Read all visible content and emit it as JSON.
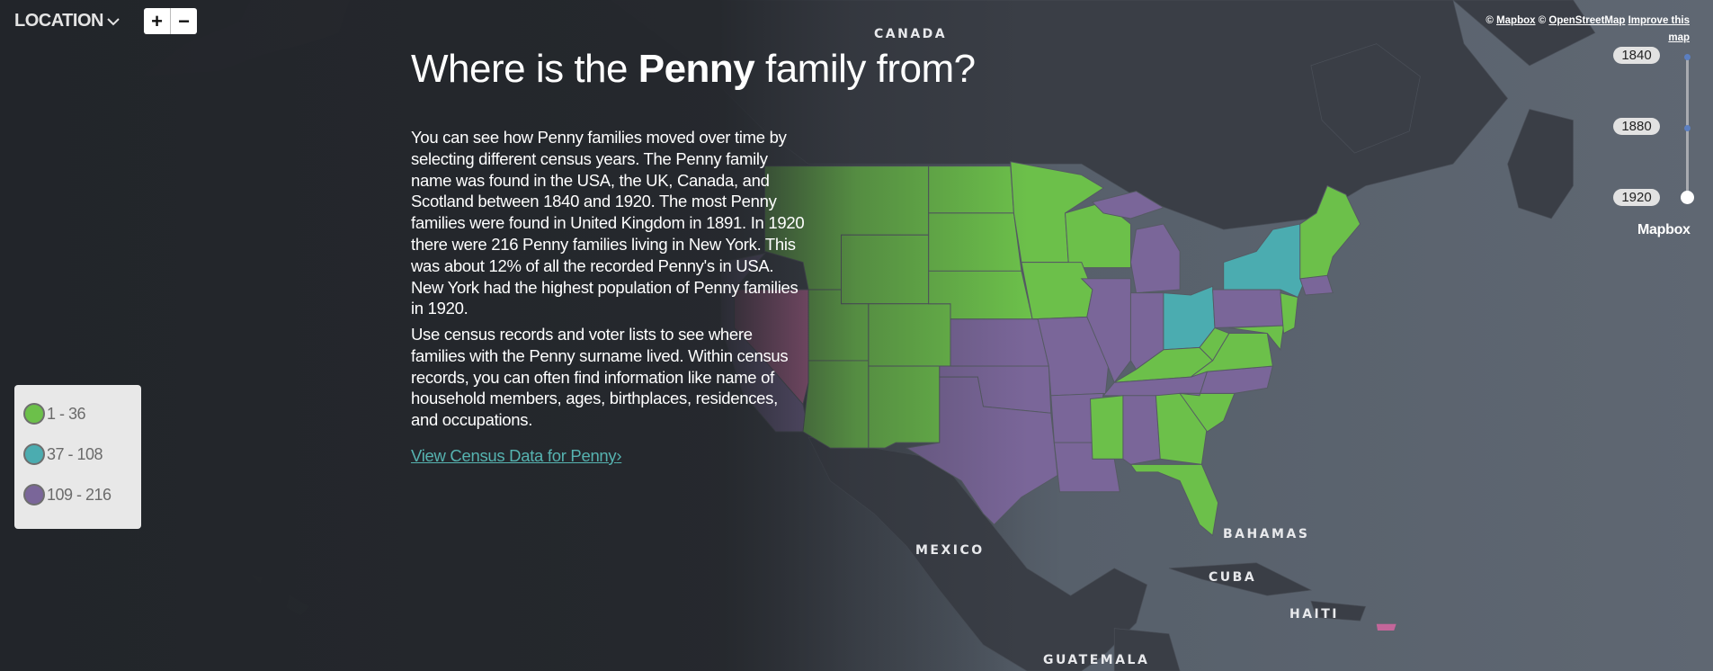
{
  "header": {
    "location_label": "LOCATION",
    "zoom_in": "+",
    "zoom_out": "−"
  },
  "main": {
    "title_prefix": "Where is the ",
    "title_surname": "Penny",
    "title_suffix": " family from?",
    "paragraph_1": "You can see how Penny families moved over time by selecting different census years. The Penny family name was found in the USA, the UK, Canada, and Scotland between 1840 and 1920. The most Penny families were found in United Kingdom in 1891. In 1920 there were 216 Penny families living in New York. This was about 12% of all the recorded Penny's in USA. New York had the highest population of Penny families in 1920.",
    "paragraph_2": "Use census records and voter lists to see where families with the Penny surname lived. Within census records, you can often find information like name of household members, ages, birthplaces, residences, and occupations.",
    "cta_label": "View Census Data for Penny"
  },
  "legend": {
    "items": [
      {
        "label": "1 - 36",
        "color": "#6cc04a"
      },
      {
        "label": "37 - 108",
        "color": "#4bacb0"
      },
      {
        "label": "109 - 216",
        "color": "#7a6699"
      }
    ]
  },
  "highlight_color": "#c4669a",
  "map_labels": {
    "canada": "CANADA",
    "mexico": "MEXICO",
    "bahamas": "BAHAMAS",
    "cuba": "CUBA",
    "haiti": "HAITI",
    "guatemala": "GUATEMALA"
  },
  "attribution": {
    "mapbox": "Mapbox",
    "osm": "OpenStreetMap",
    "improve": "Improve this map",
    "copyright": "©"
  },
  "timeline": {
    "years": [
      "1840",
      "1880",
      "1920"
    ],
    "selected": "1920"
  },
  "mapbox_logo": "Mapbox"
}
